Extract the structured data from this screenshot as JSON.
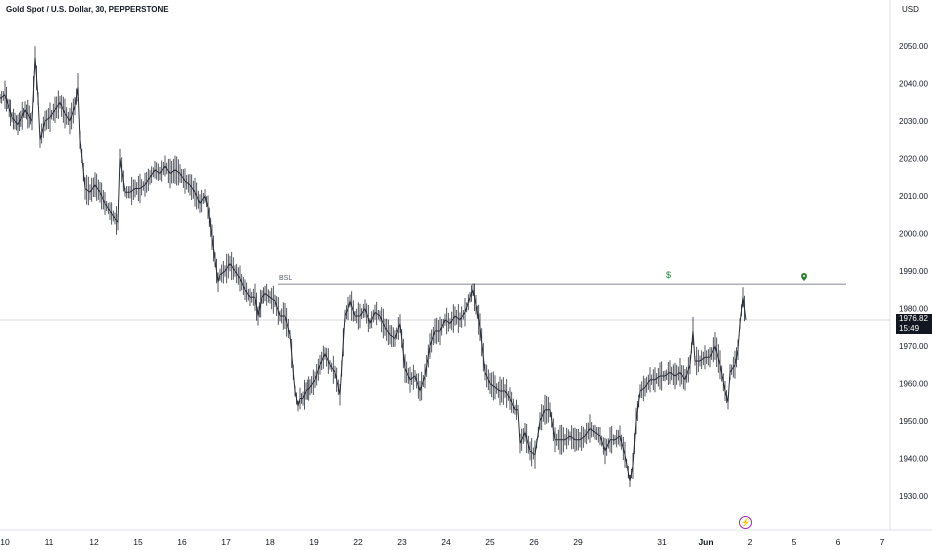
{
  "header": {
    "title": "Gold Spot / U.S. Dollar, 30, PEPPERSTONE",
    "currency": "USD"
  },
  "price_axis": {
    "ticks": [
      "2050.00",
      "2040.00",
      "2030.00",
      "2020.00",
      "2010.00",
      "2000.00",
      "1990.00",
      "1980.00",
      "1970.00",
      "1960.00",
      "1950.00",
      "1940.00",
      "1930.00"
    ],
    "current_price": "1976.82",
    "countdown": "15:49"
  },
  "time_axis": {
    "ticks": [
      "10",
      "11",
      "12",
      "15",
      "16",
      "17",
      "18",
      "19",
      "22",
      "23",
      "24",
      "25",
      "26",
      "29",
      "31",
      "Jun",
      "2",
      "5",
      "6",
      "7"
    ]
  },
  "annotations": {
    "bsl_label": "BSL",
    "bsl_level": 1986.5,
    "dollar_icon": "$",
    "pin_icon": "location-pin-icon"
  },
  "icons": {
    "flash": "lightning-icon"
  },
  "colors": {
    "candle": "#2a2e39",
    "line": "#5d606b",
    "price_badge": "#131722",
    "flash": "#9c27b0",
    "dollar": "#2e7d32"
  },
  "chart_data": {
    "type": "line",
    "title": "Gold Spot / U.S. Dollar, 30, PEPPERSTONE",
    "xlabel": "",
    "ylabel": "USD",
    "ylim": [
      1921,
      2059
    ],
    "grid": false,
    "series": [
      {
        "x": [
          0,
          5,
          12,
          18,
          25,
          32,
          35,
          38,
          40,
          45,
          50,
          55,
          60,
          65,
          70,
          75,
          78,
          80,
          85,
          90,
          95,
          100,
          105,
          110,
          115,
          118,
          120,
          125,
          130,
          135,
          140,
          145,
          150,
          155,
          160,
          165,
          170,
          175,
          180,
          185,
          190,
          195,
          200,
          205,
          208,
          212,
          215,
          218,
          220,
          225,
          230,
          235,
          240,
          245,
          250,
          255,
          258,
          262,
          265,
          270,
          275,
          280,
          285,
          290,
          295,
          298,
          300,
          303,
          306,
          310,
          315,
          320,
          325,
          330,
          335,
          340,
          345,
          348,
          350,
          355,
          360,
          365,
          370,
          375,
          380,
          385,
          390,
          395,
          400,
          405,
          410,
          415,
          420,
          425,
          430,
          435,
          440,
          445,
          450,
          455,
          460,
          465,
          470,
          473,
          476,
          480,
          485,
          490,
          495,
          500,
          505,
          510,
          515,
          518,
          520,
          525,
          530,
          535,
          540,
          545,
          550,
          555,
          560,
          565,
          570,
          575,
          580,
          585,
          590,
          595,
          600,
          605,
          610,
          615,
          620,
          625,
          630,
          633,
          636,
          640,
          645,
          650,
          655,
          660,
          665,
          670,
          675,
          680,
          685,
          690,
          693,
          695,
          700,
          705,
          710,
          715,
          720,
          725,
          728,
          730,
          735,
          738,
          740,
          743,
          746
        ],
        "values": [
          2036,
          2037,
          2031,
          2029,
          2033,
          2030,
          2047,
          2036,
          2025,
          2030,
          2031,
          2033,
          2035,
          2032,
          2030,
          2034,
          2039,
          2025,
          2012,
          2011,
          2013,
          2011,
          2008,
          2006,
          2004,
          2003,
          2020,
          2011,
          2011,
          2012,
          2012,
          2013,
          2015,
          2017,
          2016,
          2018,
          2016,
          2017,
          2016,
          2014,
          2013,
          2011,
          2008,
          2010,
          2007,
          1999,
          1993,
          1987,
          1989,
          1990,
          1992,
          1990,
          1988,
          1985,
          1983,
          1983,
          1978,
          1983,
          1984,
          1983,
          1982,
          1978,
          1978,
          1973,
          1958,
          1954,
          1956,
          1956,
          1958,
          1959,
          1961,
          1965,
          1968,
          1965,
          1963,
          1957,
          1978,
          1980,
          1982,
          1978,
          1978,
          1980,
          1976,
          1979,
          1978,
          1975,
          1973,
          1972,
          1976,
          1964,
          1961,
          1962,
          1958,
          1962,
          1970,
          1974,
          1974,
          1977,
          1976,
          1978,
          1977,
          1979,
          1983,
          1985,
          1981,
          1975,
          1963,
          1960,
          1959,
          1958,
          1958,
          1956,
          1953,
          1953,
          1944,
          1947,
          1942,
          1941,
          1950,
          1953,
          1953,
          1945,
          1945,
          1945,
          1946,
          1945,
          1945,
          1946,
          1948,
          1947,
          1946,
          1942,
          1945,
          1945,
          1946,
          1941,
          1934,
          1938,
          1950,
          1958,
          1959,
          1961,
          1961,
          1962,
          1962,
          1963,
          1962,
          1963,
          1961,
          1965,
          1974,
          1966,
          1966,
          1967,
          1967,
          1970,
          1965,
          1958,
          1955,
          1963,
          1965,
          1969,
          1976,
          1983,
          1977
        ]
      }
    ]
  }
}
